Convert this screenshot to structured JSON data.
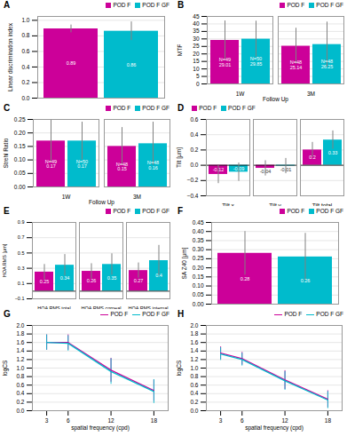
{
  "chart_data": [
    {
      "type": "bar",
      "title": "A",
      "ylabel": "Linear discrimination index",
      "categories": [
        null
      ],
      "series": [
        {
          "name": "POD F",
          "color": "#CC0099",
          "values": [
            0.89
          ],
          "errors": [
            0.05
          ]
        },
        {
          "name": "POD F GF",
          "color": "#00BBCC",
          "values": [
            0.86
          ],
          "errors": [
            0.12
          ]
        }
      ],
      "ylim": [
        0,
        1.05
      ],
      "yticks": [
        {
          "value": 0,
          "label": "0.0"
        },
        0.2,
        0.4,
        0.6,
        0.8,
        {
          "value": 1,
          "label": "1.0"
        }
      ],
      "grid": true,
      "legend": "upper right",
      "data_labels": true,
      "tick_labels": "y"
    },
    {
      "type": "bar",
      "title": "B",
      "ylabel": "MTF",
      "xlabel": "Follow Up",
      "categories": [
        "1W",
        "3M"
      ],
      "series": [
        {
          "name": "POD F",
          "color": "#CC0099",
          "values": [
            29.01,
            25.14
          ],
          "errors": [
            13,
            12
          ],
          "annotations": [
            "N=49",
            "N=48"
          ]
        },
        {
          "name": "POD F GF",
          "color": "#00BBCC",
          "values": [
            29.85,
            26.25
          ],
          "errors": [
            12,
            15
          ],
          "annotations": [
            "N=50",
            "N=48"
          ]
        }
      ],
      "ylim": [
        0,
        45
      ],
      "yticks": [
        0,
        5,
        10,
        15,
        20,
        25,
        30,
        35,
        40,
        45
      ],
      "grid": true,
      "legend": "upper right",
      "data_labels": true
    },
    {
      "type": "bar",
      "title": "C",
      "ylabel": "Strehl Ratio",
      "xlabel": "Follow Up",
      "categories": [
        "1W",
        "3M"
      ],
      "series": [
        {
          "name": "POD F",
          "color": "#CC0099",
          "values": [
            0.17,
            0.15
          ],
          "errors": [
            0.08,
            0.07
          ],
          "annotations": [
            "N=49",
            "N=48"
          ]
        },
        {
          "name": "POD F GF",
          "color": "#00BBCC",
          "values": [
            0.17,
            0.16
          ],
          "errors": [
            0.07,
            0.08
          ],
          "annotations": [
            "N=50",
            "N=48"
          ]
        }
      ],
      "ylim": [
        0,
        0.25
      ],
      "yticks": [
        {
          "value": 0,
          "label": "0.00"
        },
        0.05,
        {
          "value": 0.1,
          "label": "0.10"
        },
        0.15,
        {
          "value": 0.2,
          "label": "0.20"
        },
        0.25
      ],
      "grid": true,
      "legend": "upper right",
      "data_labels": true
    },
    {
      "type": "bar",
      "title": "D",
      "ylabel": "Tilt [μm]",
      "categories": [
        "Tilt x",
        "Tilt y",
        "Tilt total"
      ],
      "series": [
        {
          "name": "POD F",
          "color": "#CC0099",
          "values": [
            -0.12,
            -0.04,
            0.2
          ],
          "errors": [
            0.12,
            0.1,
            0.1
          ]
        },
        {
          "name": "POD F GF",
          "color": "#00BBCC",
          "values": [
            -0.09,
            -0.01,
            0.33
          ],
          "errors": [
            0.12,
            0.1,
            0.12
          ]
        }
      ],
      "ylim": [
        -0.4,
        0.6
      ],
      "yticks": [
        {
          "value": -0.4,
          "label": "−0.4"
        },
        {
          "value": -0.2,
          "label": "−0.2"
        },
        {
          "value": 0,
          "label": "0.0"
        },
        0.2,
        0.4,
        0.6
      ],
      "grid": true,
      "legend": "upper left",
      "data_labels": true
    },
    {
      "type": "bar",
      "title": "E",
      "ylabel": "HOA RMS [μm]",
      "categories": [
        "HOA RMS total",
        "HOA RMS corneal",
        "HOA RMS internal"
      ],
      "series": [
        {
          "name": "POD F",
          "color": "#CC0099",
          "values": [
            0.25,
            0.26,
            0.27
          ],
          "errors": [
            0.1,
            0.1,
            0.1
          ]
        },
        {
          "name": "POD F GF",
          "color": "#00BBCC",
          "values": [
            0.34,
            0.35,
            0.4
          ],
          "errors": [
            0.14,
            0.14,
            0.2
          ]
        }
      ],
      "ylim": [
        -0.1,
        0.9
      ],
      "yticks": [
        {
          "value": -0.1,
          "label": "−0.1"
        },
        0.1,
        0.3,
        0.5,
        0.7,
        0.9
      ],
      "grid": true,
      "legend": "upper right",
      "data_labels": true
    },
    {
      "type": "bar",
      "title": "F",
      "ylabel": "SA Z40 [μm]",
      "categories": [
        null
      ],
      "series": [
        {
          "name": "POD F",
          "color": "#CC0099",
          "values": [
            0.28
          ],
          "errors": [
            0.12
          ]
        },
        {
          "name": "POD F GF",
          "color": "#00BBCC",
          "values": [
            0.26
          ],
          "errors": [
            0.13
          ]
        }
      ],
      "ylim": [
        0,
        0.45
      ],
      "yticks": [
        {
          "value": 0,
          "label": "0.00"
        },
        0.05,
        {
          "value": 0.1,
          "label": "0.10"
        },
        0.15,
        {
          "value": 0.2,
          "label": "0.20"
        },
        0.25,
        {
          "value": 0.3,
          "label": "0.30"
        },
        0.35,
        {
          "value": 0.4,
          "label": "0.40"
        },
        0.45
      ],
      "grid": true,
      "legend": "upper right",
      "data_labels": true,
      "tick_labels": "y"
    },
    {
      "type": "line",
      "title": "G",
      "ylabel": "logCS",
      "xlabel": "spatial frequency (cpd)",
      "x": [
        3,
        6,
        12,
        18
      ],
      "series": [
        {
          "name": "POD F",
          "color": "#CC0099",
          "values": [
            1.6,
            1.6,
            0.95,
            0.47
          ],
          "errors": [
            0.18,
            0.18,
            0.28,
            0.25
          ]
        },
        {
          "name": "POD F GF",
          "color": "#00BBCC",
          "values": [
            1.6,
            1.58,
            0.92,
            0.45
          ],
          "errors": [
            0.18,
            0.18,
            0.3,
            0.28
          ]
        }
      ],
      "xlim": [
        1,
        20
      ],
      "xticks": [
        3,
        6,
        12,
        18
      ],
      "ylim": [
        0,
        2.0
      ],
      "yticks": [
        {
          "value": 0,
          "label": "0.0"
        },
        0.2,
        0.4,
        0.6,
        0.8,
        {
          "value": 1,
          "label": "1.0"
        },
        1.2,
        1.4,
        1.6,
        1.8,
        {
          "value": 2,
          "label": "2.0"
        }
      ],
      "grid": true,
      "legend": "upper right"
    },
    {
      "type": "line",
      "title": "H",
      "ylabel": "logCS",
      "xlabel": "spatial frequency (cpd)",
      "x": [
        3,
        6,
        12,
        18
      ],
      "series": [
        {
          "name": "POD F",
          "color": "#CC0099",
          "values": [
            1.35,
            1.22,
            0.72,
            0.27
          ],
          "errors": [
            0.15,
            0.15,
            0.22,
            0.2
          ]
        },
        {
          "name": "POD F GF",
          "color": "#00BBCC",
          "values": [
            1.33,
            1.2,
            0.7,
            0.25
          ],
          "errors": [
            0.15,
            0.15,
            0.22,
            0.2
          ]
        }
      ],
      "xlim": [
        1,
        20
      ],
      "xticks": [
        3,
        6,
        12,
        18
      ],
      "ylim": [
        0,
        2.0
      ],
      "yticks": [
        {
          "value": 0,
          "label": "0.0"
        },
        0.2,
        0.4,
        0.6,
        0.8,
        {
          "value": 1,
          "label": "1.0"
        },
        1.2,
        1.4,
        1.6,
        1.8,
        {
          "value": 2,
          "label": "2.0"
        }
      ],
      "grid": true,
      "legend": "upper right"
    }
  ]
}
